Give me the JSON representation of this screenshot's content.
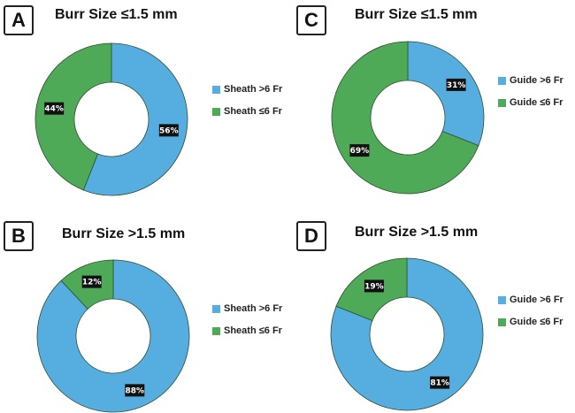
{
  "colors": {
    "blue": "#56aee0",
    "green": "#4faa58",
    "label_bg": "#111111",
    "label_fg": "#ffffff"
  },
  "chart_data": [
    {
      "type": "pie",
      "panel": "A",
      "title": "Burr Size ≤1.5 mm",
      "donut": true,
      "categories": [
        "Sheath >6 Fr",
        "Sheath ≤6 Fr"
      ],
      "values": [
        56,
        44
      ],
      "labels": [
        "56%",
        "44%"
      ],
      "legend_position": "right"
    },
    {
      "type": "pie",
      "panel": "B",
      "title": "Burr Size >1.5 mm",
      "donut": true,
      "categories": [
        "Sheath >6 Fr",
        "Sheath ≤6 Fr"
      ],
      "values": [
        88,
        12
      ],
      "labels": [
        "88%",
        "12%"
      ],
      "legend_position": "right"
    },
    {
      "type": "pie",
      "panel": "C",
      "title": "Burr Size ≤1.5 mm",
      "donut": true,
      "categories": [
        "Guide >6 Fr",
        "Guide ≤6 Fr"
      ],
      "values": [
        31,
        69
      ],
      "labels": [
        "31%",
        "69%"
      ],
      "legend_position": "right"
    },
    {
      "type": "pie",
      "panel": "D",
      "title": "Burr Size >1.5 mm",
      "donut": true,
      "categories": [
        "Guide >6 Fr",
        "Guide ≤6 Fr"
      ],
      "values": [
        81,
        19
      ],
      "labels": [
        "81%",
        "19%"
      ],
      "legend_position": "right"
    }
  ]
}
